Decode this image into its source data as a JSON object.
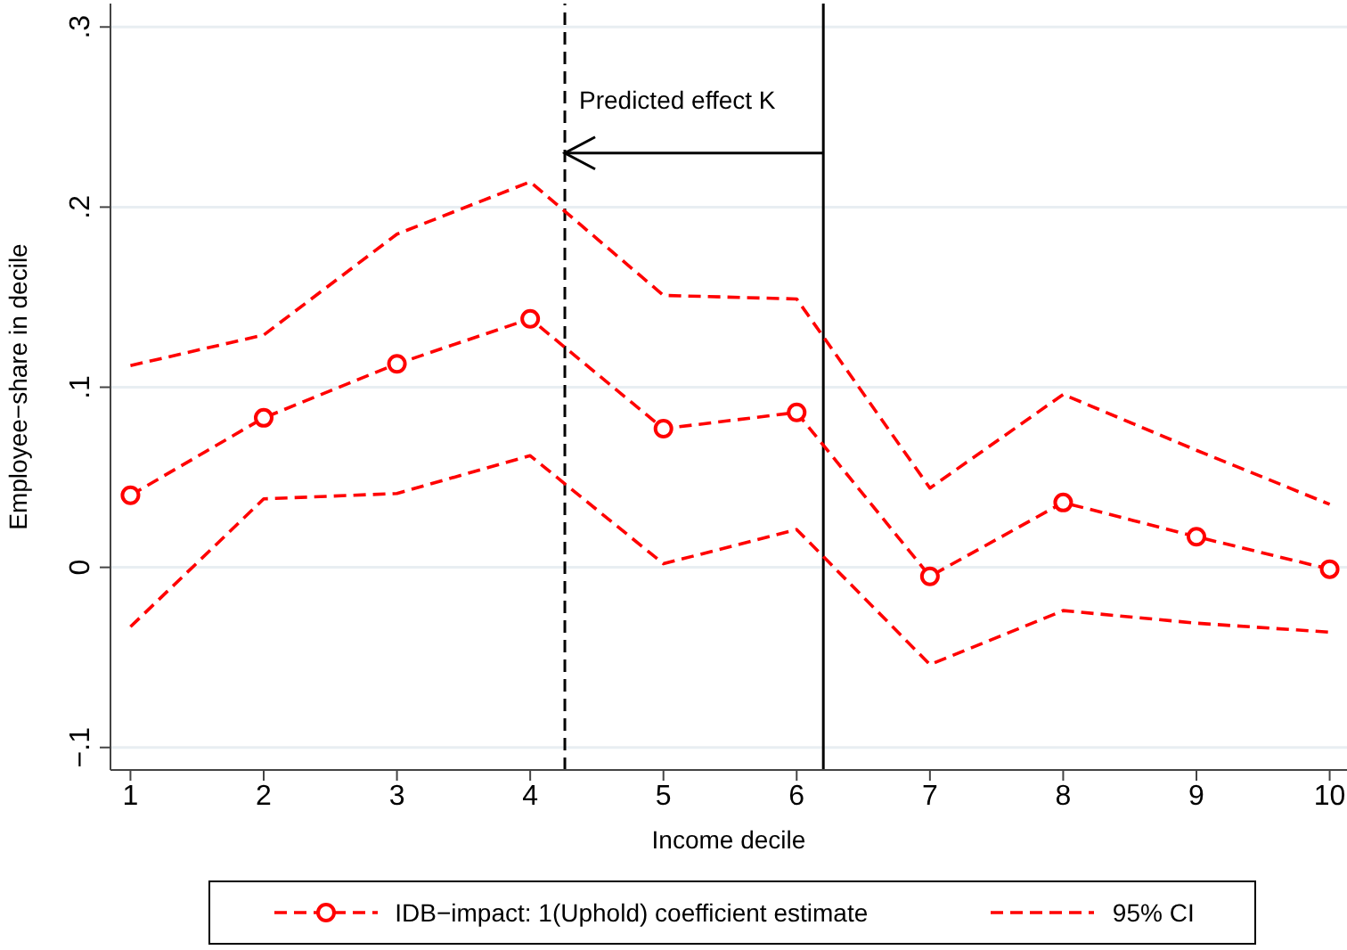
{
  "chart_data": {
    "type": "line",
    "xlabel": "Income decile",
    "ylabel": "Employee−share in decile",
    "x": [
      1,
      2,
      3,
      4,
      5,
      6,
      7,
      8,
      9,
      10
    ],
    "series": [
      {
        "name": "IDB−impact: 1(Uphold) coefficient estimate",
        "color": "#ff0000",
        "marker": "circle",
        "values": [
          0.04,
          0.083,
          0.113,
          0.138,
          0.077,
          0.086,
          -0.005,
          0.036,
          0.017,
          -0.001
        ]
      },
      {
        "name": "95% CI",
        "color": "#ff0000",
        "marker": "none",
        "values": [
          0.112,
          0.129,
          0.185,
          0.214,
          0.151,
          0.149,
          0.044,
          0.096,
          0.065,
          0.035
        ]
      },
      {
        "color": "#ff0000",
        "marker": "none",
        "values": [
          -0.033,
          0.038,
          0.041,
          0.062,
          0.002,
          0.021,
          -0.054,
          -0.024,
          -0.031,
          -0.036
        ]
      }
    ],
    "xlim": [
      0.85,
      10.13
    ],
    "ylim": [
      -0.1125,
      0.313
    ],
    "xticks": [
      1,
      2,
      3,
      4,
      5,
      6,
      7,
      8,
      9,
      10
    ],
    "yticks": [
      {
        "value": -0.1,
        "label": "−.1"
      },
      {
        "value": 0,
        "label": "0"
      },
      {
        "value": 0.1,
        "label": ".1"
      },
      {
        "value": 0.2,
        "label": ".2"
      },
      {
        "value": 0.3,
        "label": ".3"
      }
    ],
    "ref_lines": [
      {
        "axis": "x",
        "value": 4.26,
        "color": "#000000",
        "line_style": "dashed"
      },
      {
        "axis": "x",
        "value": 6.2,
        "color": "#000000",
        "line_style": "solid"
      }
    ],
    "annotations": [
      {
        "text": "Predicted effect K",
        "x": 4.26,
        "y": 0.23
      }
    ],
    "grid": "y",
    "line_style": "dashed",
    "legend": "bottom"
  }
}
